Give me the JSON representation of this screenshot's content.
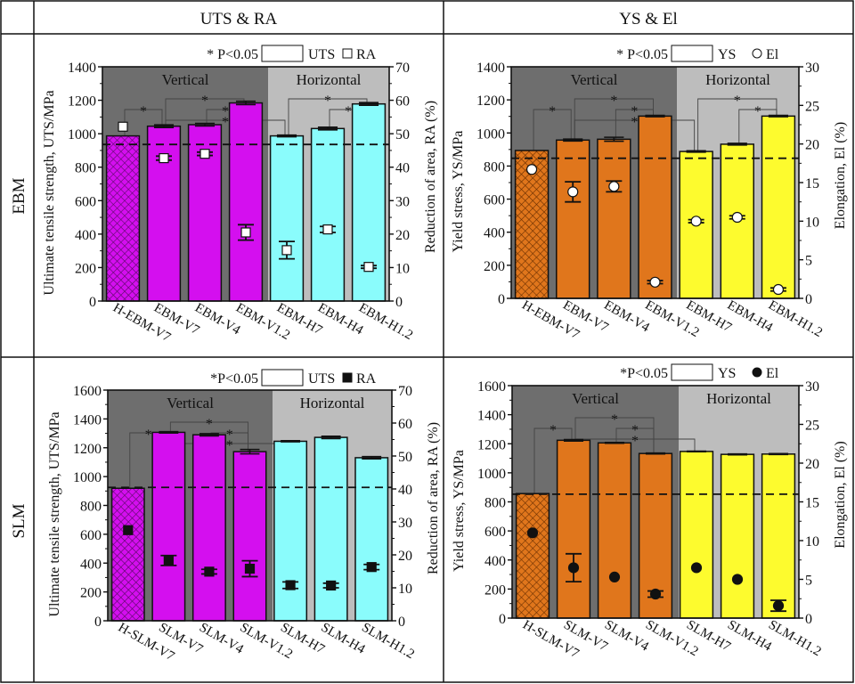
{
  "figure": {
    "column_headers": [
      "UTS & RA",
      "YS & El"
    ],
    "row_headers": [
      "EBM",
      "SLM"
    ]
  },
  "colors": {
    "vertical_bg": "#6e6e6e",
    "horizontal_bg": "#bdbdbd",
    "uts_vertical": "#d40fef",
    "uts_horizontal": "#8afcfc",
    "ys_vertical": "#e0761c",
    "ys_horizontal": "#fdfb2e"
  },
  "chart_data": [
    {
      "type": "bar",
      "group_labels": [
        "Vertical",
        "Horizontal"
      ],
      "legend": {
        "note": "* P<0.05",
        "bar_label": "UTS",
        "marker_label": "RA",
        "marker": "open-square"
      },
      "categories": [
        "H-EBM-V7",
        "EBM-V7",
        "EBM-V4",
        "EBM-V1.2",
        "EBM-H7",
        "EBM-H4",
        "EBM-H1.2"
      ],
      "ylabel": "Ultimate tensile strength, UTS/MPa",
      "y2label": "Reduction of area, RA (%)",
      "ylim": [
        0,
        1400
      ],
      "yticks": [
        0,
        200,
        400,
        600,
        800,
        1000,
        1200,
        1400
      ],
      "y2lim": [
        0,
        70
      ],
      "y2ticks": [
        0,
        10,
        20,
        30,
        40,
        50,
        60,
        70
      ],
      "bar_values": [
        987,
        1045,
        1054,
        1184,
        987,
        1031,
        1178
      ],
      "bar_errors": [
        0,
        8,
        8,
        10,
        5,
        8,
        8
      ],
      "reference_line": 936,
      "marker_values": [
        52.1,
        42.7,
        44.0,
        20.5,
        15.2,
        21.4,
        10.2
      ],
      "marker_errors": [
        0,
        0.6,
        0.5,
        2.3,
        2.6,
        0.9,
        0.4
      ],
      "significance": [
        [
          0,
          1
        ],
        [
          1,
          3
        ],
        [
          2,
          3
        ],
        [
          1,
          4
        ],
        [
          4,
          6
        ],
        [
          5,
          6
        ]
      ],
      "significance_mark": "*"
    },
    {
      "type": "bar",
      "group_labels": [
        "Vertical",
        "Horizontal"
      ],
      "legend": {
        "note": "* P<0.05",
        "bar_label": "YS",
        "marker_label": "El",
        "marker": "open-circle"
      },
      "categories": [
        "H-EBM-V7",
        "EBM-V7",
        "EBM-V4",
        "EBM-V1.2",
        "EBM-H7",
        "EBM-H4",
        "EBM-H1.2"
      ],
      "ylabel": "Yield stress, YS/MPa",
      "y2label": "Elongation, El (%)",
      "ylim": [
        0,
        1400
      ],
      "yticks": [
        0,
        200,
        400,
        600,
        800,
        1000,
        1200,
        1400
      ],
      "y2lim": [
        0,
        30
      ],
      "y2ticks": [
        0,
        5,
        10,
        15,
        20,
        25,
        30
      ],
      "bar_values": [
        894,
        957,
        962,
        1102,
        888,
        932,
        1102
      ],
      "bar_errors": [
        0,
        6,
        12,
        4,
        4,
        5,
        4
      ],
      "reference_line": 847,
      "marker_values": [
        16.7,
        13.8,
        14.5,
        2.1,
        10.0,
        10.5,
        1.15
      ],
      "marker_errors": [
        0,
        1.3,
        0.7,
        0.2,
        0.2,
        0.2,
        0.2
      ],
      "significance": [
        [
          0,
          1
        ],
        [
          1,
          3
        ],
        [
          2,
          3
        ],
        [
          1,
          4
        ],
        [
          4,
          6
        ],
        [
          5,
          6
        ]
      ],
      "significance_mark": "*"
    },
    {
      "type": "bar",
      "group_labels": [
        "Vertical",
        "Horizontal"
      ],
      "legend": {
        "note": "*P<0.05",
        "bar_label": "UTS",
        "marker_label": "RA",
        "marker": "filled-square"
      },
      "categories": [
        "H-SLM-V7",
        "SLM-V7",
        "SLM-V4",
        "SLM-V1.2",
        "SLM-H7",
        "SLM-H4",
        "SLM-H1.2"
      ],
      "ylabel": "Ultimate tensile strength, UTS/MPa",
      "y2label": "Reduction of area, RA (%)",
      "ylim": [
        0,
        1600
      ],
      "yticks": [
        0,
        200,
        400,
        600,
        800,
        1000,
        1200,
        1400,
        1600
      ],
      "y2lim": [
        0,
        70
      ],
      "y2ticks": [
        0,
        10,
        20,
        30,
        40,
        50,
        60,
        70
      ],
      "bar_values": [
        919,
        1307,
        1290,
        1173,
        1245,
        1272,
        1131
      ],
      "bar_errors": [
        0,
        5,
        8,
        15,
        4,
        8,
        8
      ],
      "reference_line": 925,
      "marker_values": [
        27.5,
        18.3,
        14.9,
        15.8,
        10.8,
        10.7,
        16.3
      ],
      "marker_errors": [
        0,
        1.5,
        0.7,
        2.4,
        1.0,
        0.7,
        0.8
      ],
      "significance": [
        [
          0,
          1
        ],
        [
          1,
          3
        ],
        [
          2,
          3
        ],
        [
          1,
          4
        ]
      ],
      "significance_mark": "*"
    },
    {
      "type": "bar",
      "group_labels": [
        "Vertical",
        "Horizontal"
      ],
      "legend": {
        "note": "*P<0.05",
        "bar_label": "YS",
        "marker_label": "El",
        "marker": "filled-circle"
      },
      "categories": [
        "H-SLM-V7",
        "SLM-V7",
        "SLM-V4",
        "SLM-V1.2",
        "SLM-H7",
        "SLM-H4",
        "SLM-H1.2"
      ],
      "ylabel": "Yield stress, YS/MPa",
      "y2label": "Elongation, El (%)",
      "ylim": [
        0,
        1600
      ],
      "yticks": [
        0,
        200,
        400,
        600,
        800,
        1000,
        1200,
        1400,
        1600
      ],
      "y2lim": [
        0,
        30
      ],
      "y2ticks": [
        0,
        5,
        10,
        15,
        20,
        25,
        30
      ],
      "bar_values": [
        857,
        1224,
        1206,
        1133,
        1147,
        1127,
        1129
      ],
      "bar_errors": [
        0,
        5,
        3,
        3,
        2,
        3,
        3
      ],
      "reference_line": 853,
      "marker_values": [
        11.0,
        6.5,
        5.3,
        3.1,
        6.5,
        5.0,
        1.6
      ],
      "marker_errors": [
        0,
        1.8,
        0,
        0.4,
        0,
        0,
        0.7
      ],
      "significance": [
        [
          0,
          1
        ],
        [
          1,
          3
        ],
        [
          2,
          3
        ],
        [
          1,
          4
        ]
      ],
      "significance_mark": "*"
    }
  ]
}
